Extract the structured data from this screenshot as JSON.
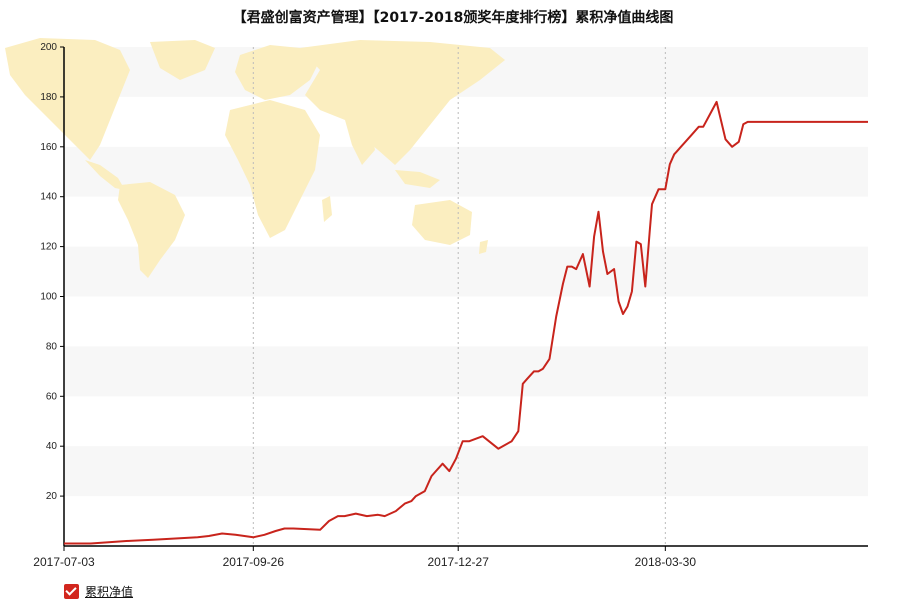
{
  "colors": {
    "line": "#c8241c",
    "band": "#f7f7f7",
    "map": "#fbeec0",
    "axis": "#000000",
    "grid": "#bbbbbb"
  },
  "chart_data": {
    "type": "line",
    "title": "【君盛创富资产管理】【2017-2018颁奖年度排行榜】累积净值曲线图",
    "xlabel": "",
    "ylabel": "",
    "ylim": [
      0,
      200
    ],
    "yticks": [
      20,
      40,
      60,
      80,
      100,
      120,
      140,
      160,
      180,
      200
    ],
    "xlim": [
      "2017-07-03",
      "2018-06-29"
    ],
    "xticks": [
      "2017-07-03",
      "2017-09-26",
      "2017-12-27",
      "2018-03-30"
    ],
    "legend_position": "bottom-left",
    "grid": "horizontal bands, dotted vertical lines",
    "series": [
      {
        "name": "累积净值",
        "x": [
          "2017-07-03",
          "2017-07-15",
          "2017-07-31",
          "2017-08-12",
          "2017-08-22",
          "2017-09-01",
          "2017-09-06",
          "2017-09-12",
          "2017-09-18",
          "2017-09-26",
          "2017-10-01",
          "2017-10-06",
          "2017-10-10",
          "2017-10-14",
          "2017-10-26",
          "2017-10-30",
          "2017-11-03",
          "2017-11-06",
          "2017-11-11",
          "2017-11-16",
          "2017-11-21",
          "2017-11-24",
          "2017-11-29",
          "2017-12-03",
          "2017-12-06",
          "2017-12-08",
          "2017-12-12",
          "2017-12-15",
          "2017-12-17",
          "2017-12-20",
          "2017-12-23",
          "2017-12-26",
          "2017-12-29",
          "2018-01-01",
          "2018-01-04",
          "2018-01-07",
          "2018-01-14",
          "2018-01-20",
          "2018-01-23",
          "2018-01-25",
          "2018-01-27",
          "2018-01-30",
          "2018-02-01",
          "2018-02-03",
          "2018-02-06",
          "2018-02-09",
          "2018-02-12",
          "2018-02-14",
          "2018-02-16",
          "2018-02-18",
          "2018-02-21",
          "2018-02-24",
          "2018-02-26",
          "2018-02-28",
          "2018-03-02",
          "2018-03-04",
          "2018-03-07",
          "2018-03-09",
          "2018-03-11",
          "2018-03-13",
          "2018-03-15",
          "2018-03-17",
          "2018-03-19",
          "2018-03-21",
          "2018-03-23",
          "2018-03-24",
          "2018-03-27",
          "2018-03-28",
          "2018-03-30",
          "2018-04-01",
          "2018-04-03",
          "2018-04-04",
          "2018-04-06",
          "2018-04-08",
          "2018-04-11",
          "2018-04-14",
          "2018-04-16",
          "2018-04-19",
          "2018-04-22",
          "2018-04-26",
          "2018-04-29",
          "2018-05-02",
          "2018-05-04",
          "2018-05-06",
          "2018-05-08",
          "2018-05-10",
          "2018-05-12",
          "2018-05-14",
          "2018-05-16",
          "2018-05-20",
          "2018-05-23",
          "2018-06-29"
        ],
        "values": [
          1,
          1,
          2,
          2.5,
          3,
          3.5,
          4,
          5,
          4.5,
          3.5,
          4.5,
          6,
          7,
          7,
          6.5,
          10,
          12,
          12,
          13,
          12,
          12.5,
          12,
          14,
          17,
          18,
          20,
          22,
          28,
          30,
          33,
          30,
          35,
          42,
          42,
          43,
          44,
          39,
          42,
          46,
          65,
          67,
          70,
          70,
          71,
          75,
          92,
          105,
          112,
          112,
          111,
          117,
          104,
          124,
          134,
          118,
          109,
          111,
          98,
          93,
          96,
          102,
          122,
          121,
          104,
          126,
          137,
          143,
          143,
          143,
          153,
          157,
          158,
          160,
          162,
          165,
          168,
          168,
          173,
          178,
          163,
          160,
          162,
          169,
          170,
          170,
          170,
          170,
          170,
          170,
          170,
          170,
          170
        ]
      }
    ]
  }
}
